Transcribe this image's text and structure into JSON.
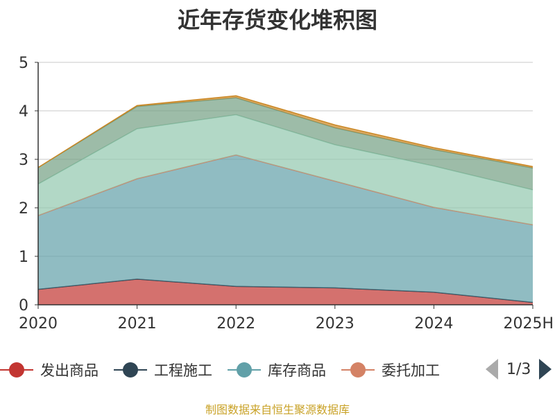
{
  "chart_data": {
    "type": "area",
    "stacked": true,
    "title": "近年存货变化堆积图",
    "categories": [
      "2020",
      "2021",
      "2022",
      "2023",
      "2024",
      "2025H"
    ],
    "ylim": [
      0,
      5
    ],
    "yticks": [
      0,
      1,
      2,
      3,
      4,
      5
    ],
    "grid": true,
    "legend_position": "bottom",
    "series": [
      {
        "name": "发出商品",
        "color": "#c23531",
        "values": [
          0.32,
          0.53,
          0.38,
          0.35,
          0.26,
          0.05
        ]
      },
      {
        "name": "工程施工",
        "color": "#2f4554",
        "values": [
          0.0,
          0.0,
          0.0,
          0.0,
          0.0,
          0.0
        ]
      },
      {
        "name": "库存商品",
        "color": "#61a0a8",
        "values": [
          1.52,
          2.07,
          2.71,
          2.2,
          1.75,
          1.6
        ]
      },
      {
        "name": "委托加工",
        "color": "#d48265",
        "values": [
          0.0,
          0.0,
          0.0,
          0.0,
          0.0,
          0.0
        ]
      },
      {
        "name": "",
        "color": "#91c7ae",
        "values": [
          0.65,
          1.03,
          0.83,
          0.75,
          0.85,
          0.72
        ]
      },
      {
        "name": "",
        "color": "#749f83",
        "values": [
          0.34,
          0.46,
          0.35,
          0.35,
          0.34,
          0.45
        ]
      },
      {
        "name": "",
        "color": "#ca8622",
        "values": [
          0.0,
          0.02,
          0.04,
          0.06,
          0.04,
          0.03
        ]
      }
    ]
  },
  "legend": {
    "page_indicator": "1/3"
  },
  "source_note": "制图数据来自恒生聚源数据库"
}
